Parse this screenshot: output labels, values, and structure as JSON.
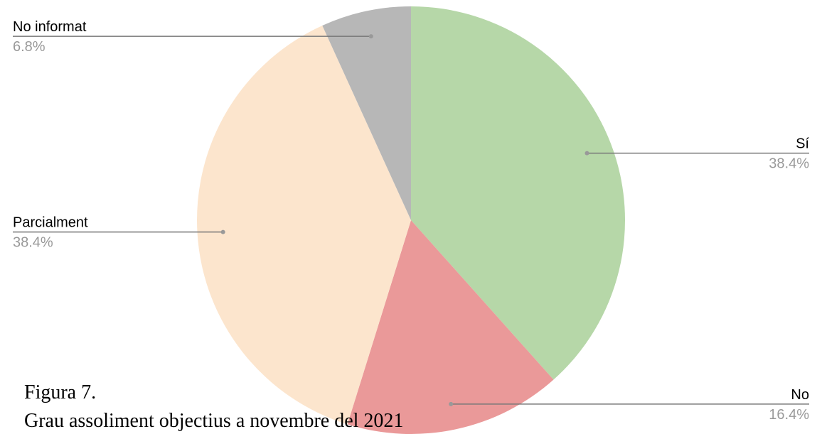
{
  "chart_data": {
    "type": "pie",
    "categories": [
      "Sí",
      "No",
      "Parcialment",
      "No informat"
    ],
    "values": [
      38.4,
      16.4,
      38.4,
      6.8
    ],
    "value_labels": [
      "38.4%",
      "16.4%",
      "38.4%",
      "6.8%"
    ],
    "colors": [
      "#b6d7a8",
      "#ea9999",
      "#fce5cd",
      "#b7b7b7"
    ],
    "caption": [
      "Figura 7.",
      "Grau assoliment objectius a novembre del 2021"
    ]
  }
}
